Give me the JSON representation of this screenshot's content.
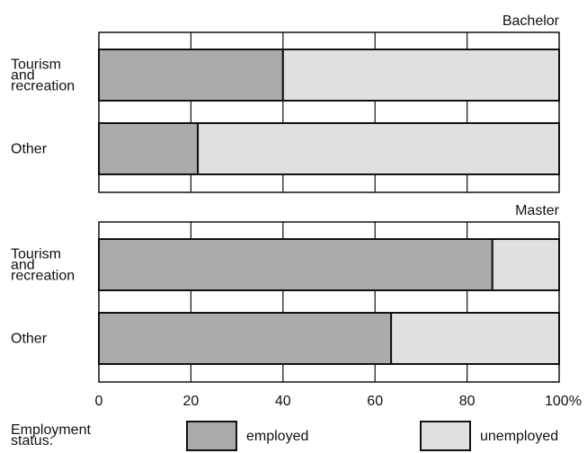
{
  "chart_data": {
    "type": "bar",
    "orientation": "horizontal",
    "stacked": true,
    "unit": "%",
    "xlim": [
      0,
      100
    ],
    "x_ticks": [
      "0",
      "20",
      "40",
      "60",
      "80",
      "100%"
    ],
    "grid": true,
    "legend": {
      "title": [
        "Employment",
        "status:"
      ],
      "position": "bottom",
      "items": [
        {
          "label": "employed",
          "color": "#aaaaaa"
        },
        {
          "label": "unemployed",
          "color": "#e0e0e0"
        }
      ]
    },
    "panels": [
      {
        "title": "Bachelor",
        "categories": [
          {
            "label": [
              "Tourism",
              "and",
              "recreation"
            ],
            "employed": 40,
            "unemployed": 60
          },
          {
            "label": [
              "Other"
            ],
            "employed": 21.5,
            "unemployed": 78.5
          }
        ]
      },
      {
        "title": "Master",
        "categories": [
          {
            "label": [
              "Tourism",
              "and",
              "recreation"
            ],
            "employed": 85.5,
            "unemployed": 14.5
          },
          {
            "label": [
              "Other"
            ],
            "employed": 63.5,
            "unemployed": 36.5
          }
        ]
      }
    ]
  }
}
